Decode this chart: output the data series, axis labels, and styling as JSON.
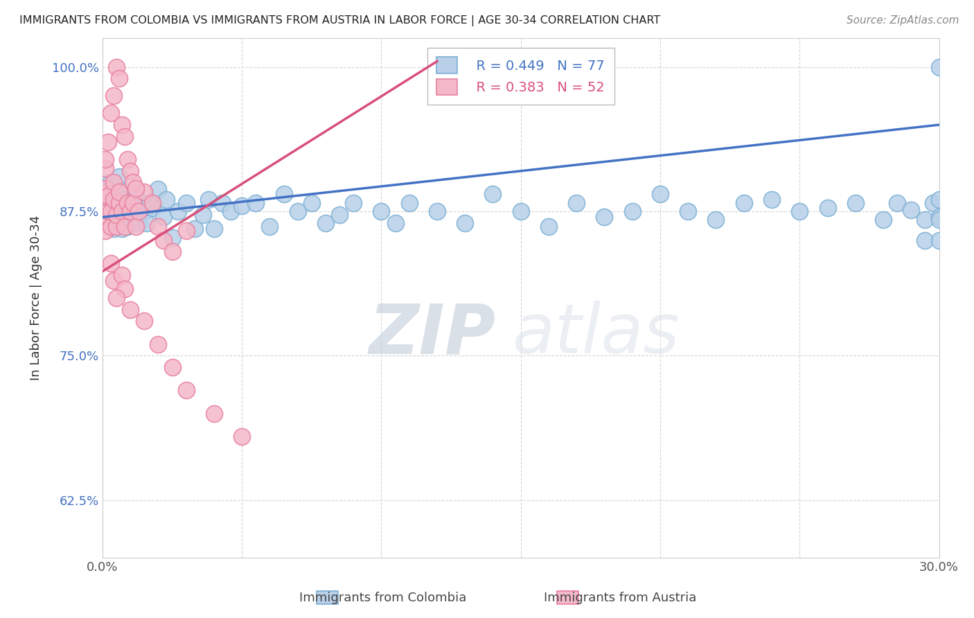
{
  "title": "IMMIGRANTS FROM COLOMBIA VS IMMIGRANTS FROM AUSTRIA IN LABOR FORCE | AGE 30-34 CORRELATION CHART",
  "source": "Source: ZipAtlas.com",
  "ylabel": "In Labor Force | Age 30-34",
  "xlim": [
    0.0,
    0.3
  ],
  "ylim": [
    0.575,
    1.025
  ],
  "yticks": [
    0.625,
    0.75,
    0.875,
    1.0
  ],
  "ytick_labels": [
    "62.5%",
    "75.0%",
    "87.5%",
    "100.0%"
  ],
  "xticks": [
    0.0,
    0.05,
    0.1,
    0.15,
    0.2,
    0.25,
    0.3
  ],
  "xtick_labels": [
    "0.0%",
    "",
    "",
    "",
    "",
    "",
    "30.0%"
  ],
  "legend_blue_r": "R = 0.449",
  "legend_blue_n": "N = 77",
  "legend_pink_r": "R = 0.383",
  "legend_pink_n": "N = 52",
  "blue_color": "#b8d0e8",
  "blue_edge": "#7bafd4",
  "blue_line": "#4472c4",
  "pink_color": "#f4b8c8",
  "pink_edge": "#e87fa0",
  "pink_line": "#d94f7a",
  "watermark_zip": "ZIP",
  "watermark_atlas": "atlas",
  "watermark_color": "#d0dce8",
  "colombia_x": [
    0.001,
    0.002,
    0.003,
    0.003,
    0.004,
    0.005,
    0.005,
    0.006,
    0.006,
    0.007,
    0.007,
    0.008,
    0.008,
    0.009,
    0.009,
    0.01,
    0.01,
    0.011,
    0.012,
    0.012,
    0.013,
    0.014,
    0.015,
    0.016,
    0.017,
    0.018,
    0.02,
    0.022,
    0.023,
    0.025,
    0.027,
    0.03,
    0.033,
    0.036,
    0.038,
    0.04,
    0.043,
    0.046,
    0.05,
    0.055,
    0.06,
    0.065,
    0.07,
    0.075,
    0.08,
    0.085,
    0.09,
    0.1,
    0.105,
    0.11,
    0.12,
    0.13,
    0.14,
    0.15,
    0.16,
    0.17,
    0.18,
    0.19,
    0.2,
    0.21,
    0.22,
    0.23,
    0.24,
    0.25,
    0.26,
    0.27,
    0.28,
    0.285,
    0.29,
    0.295,
    0.295,
    0.298,
    0.3,
    0.3,
    0.3,
    0.3,
    0.3
  ],
  "colombia_y": [
    0.88,
    0.875,
    0.895,
    0.9,
    0.86,
    0.885,
    0.87,
    0.905,
    0.88,
    0.86,
    0.893,
    0.875,
    0.885,
    0.862,
    0.87,
    0.883,
    0.875,
    0.872,
    0.868,
    0.89,
    0.865,
    0.882,
    0.875,
    0.865,
    0.882,
    0.878,
    0.894,
    0.87,
    0.885,
    0.852,
    0.875,
    0.882,
    0.86,
    0.872,
    0.885,
    0.86,
    0.882,
    0.875,
    0.88,
    0.882,
    0.862,
    0.89,
    0.875,
    0.882,
    0.865,
    0.872,
    0.882,
    0.875,
    0.865,
    0.882,
    0.875,
    0.865,
    0.89,
    0.875,
    0.862,
    0.882,
    0.87,
    0.875,
    0.89,
    0.875,
    0.868,
    0.882,
    0.885,
    0.875,
    0.878,
    0.882,
    0.868,
    0.882,
    0.876,
    0.868,
    0.85,
    0.882,
    0.87,
    0.868,
    0.85,
    0.885,
    1.0
  ],
  "austria_x": [
    0.0,
    0.0,
    0.001,
    0.001,
    0.001,
    0.002,
    0.002,
    0.003,
    0.003,
    0.004,
    0.004,
    0.005,
    0.005,
    0.006,
    0.006,
    0.007,
    0.008,
    0.009,
    0.01,
    0.011,
    0.012,
    0.013,
    0.015,
    0.018,
    0.02,
    0.022,
    0.025,
    0.03,
    0.003,
    0.004,
    0.005,
    0.006,
    0.007,
    0.008,
    0.009,
    0.01,
    0.011,
    0.012,
    0.001,
    0.002,
    0.003,
    0.004,
    0.007,
    0.008,
    0.005,
    0.01,
    0.015,
    0.02,
    0.025,
    0.03,
    0.04,
    0.05
  ],
  "austria_y": [
    0.89,
    0.87,
    0.858,
    0.895,
    0.912,
    0.875,
    0.888,
    0.862,
    0.875,
    0.885,
    0.9,
    0.862,
    0.872,
    0.882,
    0.892,
    0.875,
    0.862,
    0.882,
    0.875,
    0.882,
    0.862,
    0.875,
    0.892,
    0.882,
    0.862,
    0.85,
    0.84,
    0.858,
    0.96,
    0.975,
    1.0,
    0.99,
    0.95,
    0.94,
    0.92,
    0.91,
    0.9,
    0.895,
    0.92,
    0.935,
    0.83,
    0.815,
    0.82,
    0.808,
    0.8,
    0.79,
    0.78,
    0.76,
    0.74,
    0.72,
    0.7,
    0.68
  ],
  "blue_line_x": [
    0.0,
    0.3
  ],
  "blue_line_y": [
    0.87,
    0.95
  ],
  "pink_line_x": [
    0.0,
    0.12
  ],
  "pink_line_y": [
    0.823,
    1.005
  ]
}
